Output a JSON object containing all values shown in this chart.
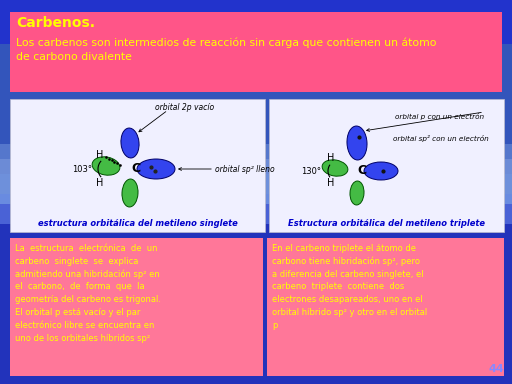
{
  "title": "Carbenos.",
  "subtitle": "Los carbenos son intermedios de reacción sin carga que contienen un átomo\nde carbono divalente",
  "bg_top_color": "#2222bb",
  "bg_mid_color": "#5599dd",
  "bg_bot_color": "#2233aa",
  "header_bg": "#ff5588",
  "title_color": "#ffff00",
  "subtitle_color": "#ffff00",
  "panel_bg": "#ff7799",
  "panel_text_color": "#ffff00",
  "diagram_bg": "#f0f0ff",
  "left_diagram_label": "estructura orbitálica del metileno singlete",
  "right_diagram_label": "Estructura orbitálica del metileno triplete",
  "left_text_lines": [
    "La  estructura  electrónica  de  un",
    "carbeno  singlete  se  explica",
    "admitiendo una hibridación sp² en",
    "el  carbono,  de  forma  que  la",
    "geometría del carbeno es trigonal.",
    "El orbital p está vacío y el par",
    "electrónico libre se encuentra en",
    "uno de los orbitales híbridos sp²"
  ],
  "right_text_lines": [
    "En el carbeno triplete el átomo de",
    "carbono tiene hibridación sp², pero",
    "a diferencia del carbeno singlete, el",
    "carbeno  triplete  contiene  dos",
    "electrones desapareados, uno en el",
    "orbital híbrido sp² y otro en el orbital",
    "p"
  ],
  "page_number": "44",
  "blue_orbital_color": "#3344ee",
  "green_orbital_color": "#44bb44",
  "orbital_edge_color": "#000066"
}
